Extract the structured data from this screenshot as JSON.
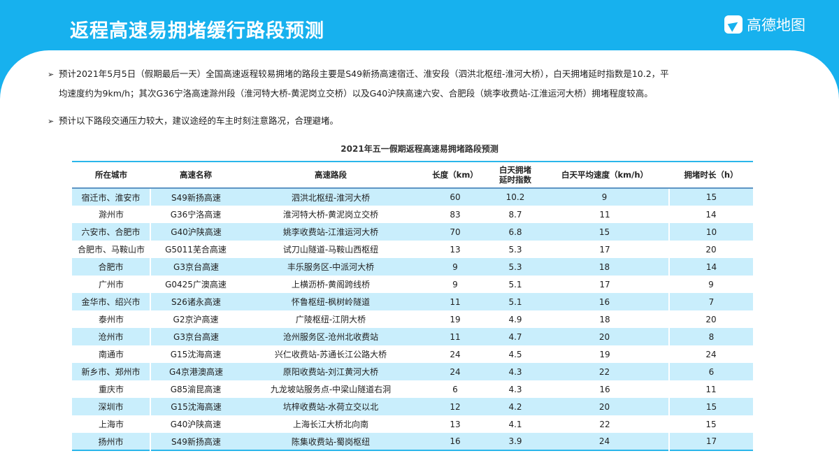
{
  "header": {
    "title": "返程高速易拥堵缓行路段预测",
    "logo_text": "高德地图"
  },
  "paragraphs": [
    {
      "line1": "预计2021年5月5日（假期最后一天）全国高速返程较易拥堵的路段主要是S49新扬高速宿迁、淮安段（泗洪北枢纽-淮河大桥），白天拥堵延时指数是10.2，平",
      "line2": "均速度约为9km/h；其次G36宁洛高速滁州段（淮河特大桥-黄泥岗立交桥）以及G40沪陕高速六安、合肥段（姚李收费站-江淮运河大桥）拥堵程度较高。"
    },
    {
      "line1": "预计以下路段交通压力较大，建议途经的车主时刻注意路况，合理避堵。"
    }
  ],
  "table": {
    "caption": "2021年五一假期返程高速易拥堵路段预测",
    "headers": [
      "所在城市",
      "高速名称",
      "高速路段",
      "长度（km）",
      "白天拥堵\n延时指数",
      "白天平均速度（km/h）",
      "拥堵时长（h）"
    ],
    "rows": [
      [
        "宿迁市、淮安市",
        "S49新扬高速",
        "泗洪北枢纽-淮河大桥",
        "60",
        "10.2",
        "9",
        "15"
      ],
      [
        "滁州市",
        "G36宁洛高速",
        "淮河特大桥-黄泥岗立交桥",
        "83",
        "8.7",
        "11",
        "14"
      ],
      [
        "六安市、合肥市",
        "G40沪陕高速",
        "姚李收费站-江淮运河大桥",
        "70",
        "6.8",
        "15",
        "10"
      ],
      [
        "合肥市、马鞍山市",
        "G5011芜合高速",
        "试刀山隧道-马鞍山西枢纽",
        "13",
        "5.3",
        "17",
        "20"
      ],
      [
        "合肥市",
        "G3京台高速",
        "丰乐服务区-中派河大桥",
        "9",
        "5.3",
        "18",
        "14"
      ],
      [
        "广州市",
        "G0425广澳高速",
        "上横沥桥-黄阁跨线桥",
        "9",
        "5.1",
        "17",
        "9"
      ],
      [
        "金华市、绍兴市",
        "S26诸永高速",
        "怀鲁枢纽-枫树岭隧道",
        "11",
        "5.1",
        "16",
        "7"
      ],
      [
        "泰州市",
        "G2京沪高速",
        "广陵枢纽-江阴大桥",
        "19",
        "4.9",
        "18",
        "20"
      ],
      [
        "沧州市",
        "G3京台高速",
        "沧州服务区-沧州北收费站",
        "11",
        "4.7",
        "20",
        "8"
      ],
      [
        "南通市",
        "G15沈海高速",
        "兴仁收费站-苏通长江公路大桥",
        "24",
        "4.5",
        "19",
        "24"
      ],
      [
        "新乡市、郑州市",
        "G4京港澳高速",
        "原阳收费站-刘江黄河大桥",
        "24",
        "4.3",
        "22",
        "6"
      ],
      [
        "重庆市",
        "G85渝昆高速",
        "九龙坡站服务点-中梁山隧道右洞",
        "6",
        "4.3",
        "16",
        "11"
      ],
      [
        "深圳市",
        "G15沈海高速",
        "坑梓收费站-水荷立交以北",
        "12",
        "4.2",
        "20",
        "15"
      ],
      [
        "上海市",
        "G40沪陕高速",
        "上海长江大桥北向南",
        "13",
        "4.1",
        "22",
        "15"
      ],
      [
        "扬州市",
        "S49新扬高速",
        "陈集收费站-蜀岗枢纽",
        "16",
        "3.9",
        "24",
        "17"
      ]
    ]
  }
}
